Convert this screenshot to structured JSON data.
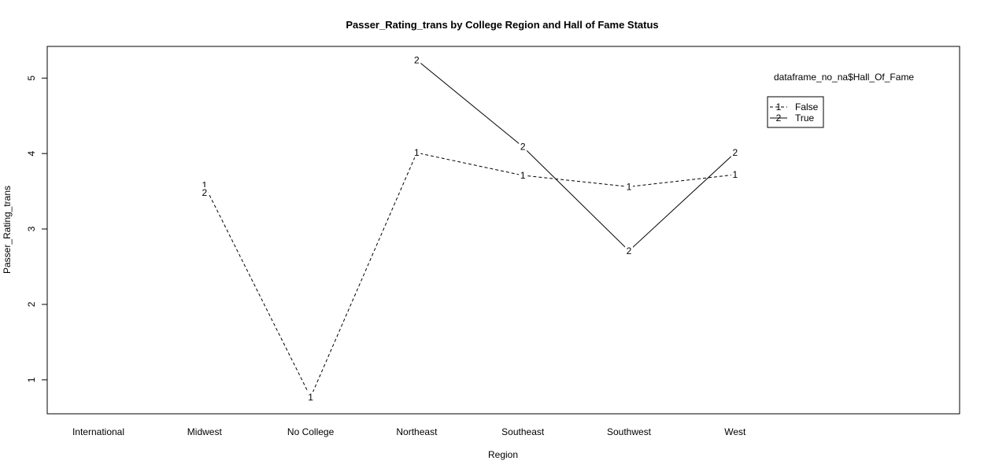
{
  "chart_data": {
    "type": "line",
    "title": "Passer_Rating_trans by College Region and Hall of Fame Status",
    "xlabel": "Region",
    "ylabel": "Passer_Rating_trans",
    "categories": [
      "International",
      "Midwest",
      "No College",
      "Northeast",
      "Southeast",
      "Southwest",
      "West"
    ],
    "yticks": [
      1,
      2,
      3,
      4,
      5
    ],
    "ylim": [
      0.55,
      5.42
    ],
    "series": [
      {
        "name": "False",
        "symbol": "1",
        "linestyle": "dashed",
        "values": [
          null,
          3.58,
          0.77,
          4.01,
          3.71,
          3.56,
          3.72
        ]
      },
      {
        "name": "True",
        "symbol": "2",
        "linestyle": "solid",
        "values": [
          null,
          3.48,
          null,
          5.24,
          4.09,
          2.71,
          4.01
        ]
      }
    ],
    "legend": {
      "title": "dataframe_no_na$Hall_Of_Fame",
      "placement": "top-right"
    }
  }
}
